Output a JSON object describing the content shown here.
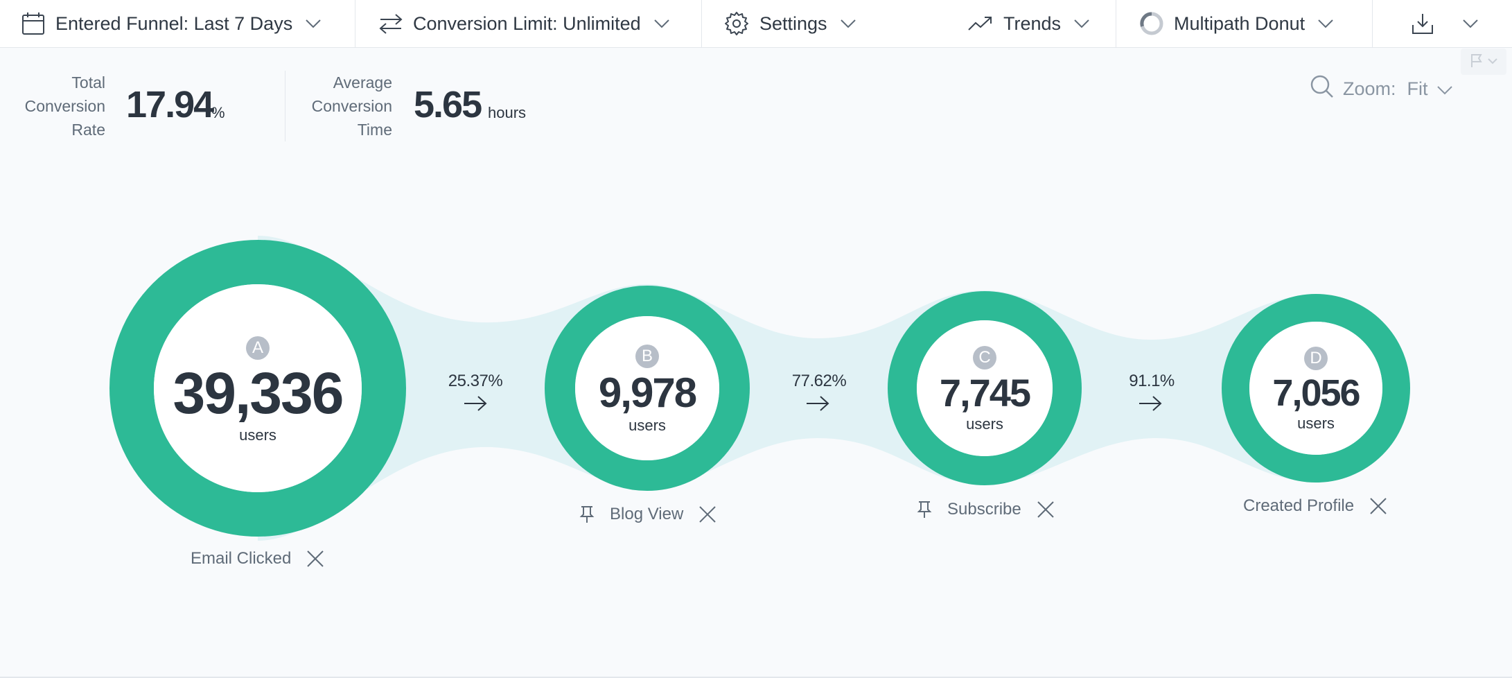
{
  "toolbar": {
    "date_range": "Entered Funnel: Last 7 Days",
    "conversion_limit": "Conversion Limit: Unlimited",
    "settings": "Settings",
    "trends": "Trends",
    "chart_type": "Multipath Donut"
  },
  "stats": {
    "total_rate": {
      "label_lines": [
        "Total",
        "Conversion",
        "Rate"
      ],
      "value": "17.94",
      "unit": "%"
    },
    "avg_time": {
      "label_lines": [
        "Average",
        "Conversion",
        "Time"
      ],
      "value": "5.65",
      "unit": "hours"
    }
  },
  "zoom": {
    "label": "Zoom:",
    "value": "Fit"
  },
  "colors": {
    "ring": "#2dba96",
    "flow": "#e1f2f5",
    "text": "#2c3540",
    "muted": "#5f6b78",
    "letter_badge": "#b7bec8"
  },
  "funnel": {
    "unit": "users",
    "steps": [
      {
        "letter": "A",
        "count": "39,336",
        "name": "Email Clicked",
        "pinnable": false
      },
      {
        "letter": "B",
        "count": "9,978",
        "name": "Blog View",
        "pinnable": true
      },
      {
        "letter": "C",
        "count": "7,745",
        "name": "Subscribe",
        "pinnable": true
      },
      {
        "letter": "D",
        "count": "7,056",
        "name": "Created Profile",
        "pinnable": false
      }
    ],
    "conversions": [
      "25.37%",
      "77.62%",
      "91.1%"
    ]
  }
}
